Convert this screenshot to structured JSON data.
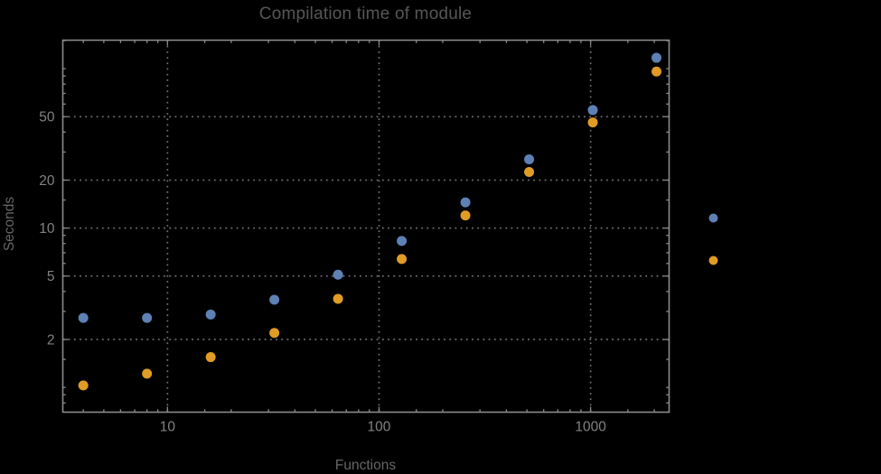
{
  "page": {
    "background": "#000000"
  },
  "chart_data": {
    "type": "scatter",
    "title": "Compilation time of module",
    "xlabel": "Functions",
    "ylabel": "Seconds",
    "x_scale": "log",
    "y_scale": "log",
    "xlim": [
      3.2,
      2350
    ],
    "ylim": [
      0.7,
      151
    ],
    "grid": true,
    "x_major_ticks": [
      10,
      100,
      1000
    ],
    "x_minor_ticks": [
      4,
      5,
      6,
      7,
      8,
      9,
      15,
      20,
      30,
      40,
      50,
      60,
      70,
      80,
      90,
      150,
      200,
      300,
      400,
      500,
      600,
      700,
      800,
      900,
      1500,
      2000
    ],
    "y_major_ticks": [
      2,
      5,
      10,
      20,
      50
    ],
    "y_minor_ticks": [
      0.8,
      0.9,
      1,
      1.5,
      3,
      4,
      6,
      7,
      8,
      9,
      15,
      30,
      40,
      60,
      70,
      80,
      90,
      100,
      150
    ],
    "grid_x": [
      10,
      100,
      1000
    ],
    "grid_y": [
      2,
      5,
      10,
      20,
      50
    ],
    "x": [
      4,
      8,
      16,
      32,
      64,
      128,
      256,
      512,
      1024,
      2048
    ],
    "series": [
      {
        "name": "series_1",
        "marker": "disk",
        "color": "#5e81b5",
        "values": [
          2.73,
          2.73,
          2.87,
          3.55,
          5.1,
          8.3,
          14.5,
          27,
          55,
          117
        ]
      },
      {
        "name": "series_2",
        "marker": "disk",
        "color": "#e09c24",
        "values": [
          1.03,
          1.22,
          1.55,
          2.2,
          3.6,
          6.4,
          12,
          22.5,
          46,
          96
        ]
      }
    ],
    "legend": {
      "position": "right-of-frame",
      "labels_visible": false,
      "markers": [
        {
          "color": "#5e81b5"
        },
        {
          "color": "#e09c24"
        }
      ]
    },
    "style": {
      "background": "#000000",
      "frame_color": "#8a8a8a",
      "grid_color": "#6e6e6e",
      "tick_label_color": "#828282",
      "title_color": "#565656",
      "axis_label_color": "#666666"
    }
  }
}
